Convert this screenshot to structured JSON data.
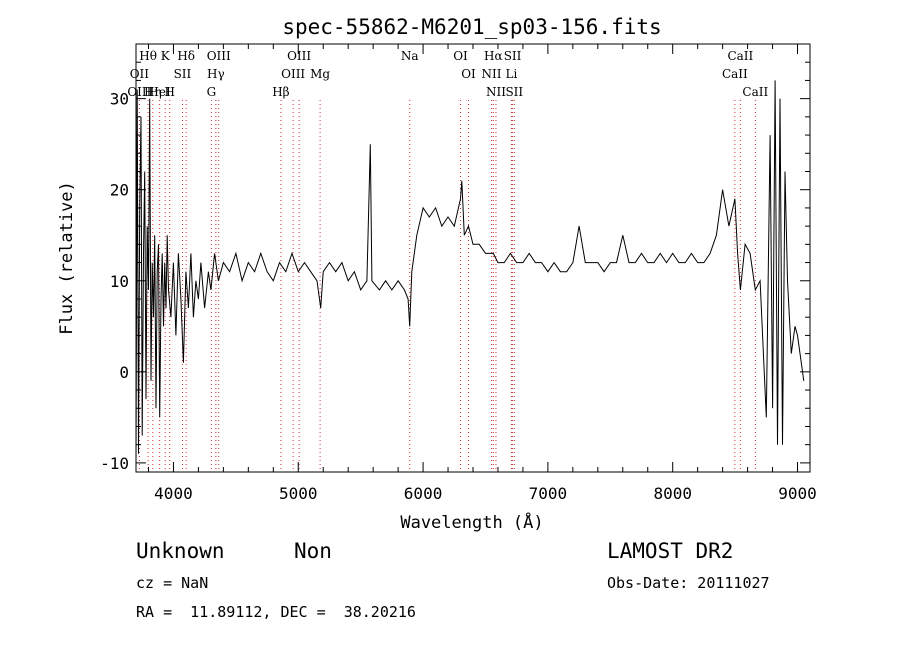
{
  "chart_data": {
    "type": "line",
    "title": "spec-55862-M6201_sp03-156.fits",
    "xlabel": "Wavelength (Å)",
    "ylabel": "Flux (relative)",
    "xlim": [
      3700,
      9100
    ],
    "ylim": [
      -11,
      36
    ],
    "xticks": [
      4000,
      5000,
      6000,
      7000,
      8000,
      9000
    ],
    "yticks": [
      -10,
      0,
      10,
      20,
      30
    ],
    "grid": false,
    "series": [
      {
        "points": [
          [
            3700,
            -10
          ],
          [
            3710,
            31
          ],
          [
            3720,
            -9
          ],
          [
            3730,
            18
          ],
          [
            3740,
            28
          ],
          [
            3750,
            -7
          ],
          [
            3760,
            13
          ],
          [
            3770,
            22
          ],
          [
            3780,
            -3
          ],
          [
            3790,
            16
          ],
          [
            3800,
            9
          ],
          [
            3810,
            30
          ],
          [
            3820,
            -1
          ],
          [
            3830,
            12
          ],
          [
            3840,
            6
          ],
          [
            3850,
            15
          ],
          [
            3860,
            -4
          ],
          [
            3870,
            11
          ],
          [
            3880,
            14
          ],
          [
            3890,
            -5
          ],
          [
            3900,
            8
          ],
          [
            3910,
            13
          ],
          [
            3920,
            5
          ],
          [
            3930,
            12
          ],
          [
            3940,
            7
          ],
          [
            3950,
            15
          ],
          [
            3960,
            9
          ],
          [
            3980,
            6
          ],
          [
            4000,
            12
          ],
          [
            4020,
            4
          ],
          [
            4040,
            13
          ],
          [
            4060,
            8
          ],
          [
            4080,
            1
          ],
          [
            4100,
            11
          ],
          [
            4120,
            7
          ],
          [
            4140,
            13
          ],
          [
            4160,
            6
          ],
          [
            4180,
            10
          ],
          [
            4200,
            8
          ],
          [
            4220,
            12
          ],
          [
            4250,
            7
          ],
          [
            4280,
            11
          ],
          [
            4300,
            9
          ],
          [
            4330,
            13
          ],
          [
            4360,
            10
          ],
          [
            4400,
            12
          ],
          [
            4450,
            11
          ],
          [
            4500,
            13
          ],
          [
            4550,
            10
          ],
          [
            4600,
            12
          ],
          [
            4650,
            11
          ],
          [
            4700,
            13
          ],
          [
            4750,
            11
          ],
          [
            4800,
            10
          ],
          [
            4850,
            12
          ],
          [
            4900,
            11
          ],
          [
            4950,
            13
          ],
          [
            5000,
            11
          ],
          [
            5050,
            12
          ],
          [
            5100,
            11
          ],
          [
            5150,
            10
          ],
          [
            5180,
            7
          ],
          [
            5200,
            11
          ],
          [
            5250,
            12
          ],
          [
            5300,
            11
          ],
          [
            5350,
            12
          ],
          [
            5400,
            10
          ],
          [
            5450,
            11
          ],
          [
            5500,
            9
          ],
          [
            5550,
            10
          ],
          [
            5577,
            25
          ],
          [
            5590,
            10
          ],
          [
            5650,
            9
          ],
          [
            5700,
            10
          ],
          [
            5750,
            9
          ],
          [
            5800,
            10
          ],
          [
            5850,
            9
          ],
          [
            5880,
            8
          ],
          [
            5893,
            5
          ],
          [
            5910,
            11
          ],
          [
            5950,
            15
          ],
          [
            6000,
            18
          ],
          [
            6050,
            17
          ],
          [
            6100,
            18
          ],
          [
            6150,
            16
          ],
          [
            6200,
            17
          ],
          [
            6250,
            16
          ],
          [
            6300,
            19
          ],
          [
            6310,
            21
          ],
          [
            6330,
            15
          ],
          [
            6364,
            16
          ],
          [
            6400,
            14
          ],
          [
            6450,
            14
          ],
          [
            6500,
            13
          ],
          [
            6563,
            13
          ],
          [
            6600,
            12
          ],
          [
            6650,
            12
          ],
          [
            6700,
            13
          ],
          [
            6750,
            12
          ],
          [
            6800,
            12
          ],
          [
            6850,
            13
          ],
          [
            6900,
            12
          ],
          [
            6950,
            12
          ],
          [
            7000,
            11
          ],
          [
            7050,
            12
          ],
          [
            7100,
            11
          ],
          [
            7150,
            11
          ],
          [
            7200,
            12
          ],
          [
            7250,
            16
          ],
          [
            7300,
            12
          ],
          [
            7350,
            12
          ],
          [
            7400,
            12
          ],
          [
            7450,
            11
          ],
          [
            7500,
            12
          ],
          [
            7550,
            12
          ],
          [
            7600,
            15
          ],
          [
            7650,
            12
          ],
          [
            7700,
            12
          ],
          [
            7750,
            13
          ],
          [
            7800,
            12
          ],
          [
            7850,
            12
          ],
          [
            7900,
            13
          ],
          [
            7950,
            12
          ],
          [
            8000,
            13
          ],
          [
            8050,
            12
          ],
          [
            8100,
            12
          ],
          [
            8150,
            13
          ],
          [
            8200,
            12
          ],
          [
            8250,
            12
          ],
          [
            8300,
            13
          ],
          [
            8350,
            15
          ],
          [
            8400,
            20
          ],
          [
            8450,
            16
          ],
          [
            8498,
            19
          ],
          [
            8520,
            13
          ],
          [
            8542,
            9
          ],
          [
            8580,
            14
          ],
          [
            8620,
            13
          ],
          [
            8662,
            9
          ],
          [
            8700,
            10
          ],
          [
            8750,
            -5
          ],
          [
            8780,
            26
          ],
          [
            8800,
            -4
          ],
          [
            8820,
            32
          ],
          [
            8840,
            -8
          ],
          [
            8860,
            30
          ],
          [
            8880,
            -8
          ],
          [
            8900,
            22
          ],
          [
            8920,
            10
          ],
          [
            8950,
            2
          ],
          [
            8980,
            5
          ],
          [
            9000,
            4
          ],
          [
            9050,
            -1
          ]
        ]
      }
    ],
    "lines": [
      {
        "label": "Hθ",
        "x": 3797
      },
      {
        "label": "OII",
        "x": 3727
      },
      {
        "label": "OIII",
        "x": 3727
      },
      {
        "label": "K",
        "x": 3934
      },
      {
        "label": "HeI",
        "x": 3889
      },
      {
        "label": "Hη",
        "x": 3835
      },
      {
        "label": "Hδ",
        "x": 4102
      },
      {
        "label": "SII",
        "x": 4072
      },
      {
        "label": "H",
        "x": 3970
      },
      {
        "label": "OIII",
        "x": 4363
      },
      {
        "label": "Hγ",
        "x": 4340
      },
      {
        "label": "G",
        "x": 4304
      },
      {
        "label": "OIII",
        "x": 5007
      },
      {
        "label": "OIII",
        "x": 4959
      },
      {
        "label": "Hβ",
        "x": 4861
      },
      {
        "label": "Mg",
        "x": 5175
      },
      {
        "label": "Na",
        "x": 5893
      },
      {
        "label": "OI",
        "x": 6300
      },
      {
        "label": "OI",
        "x": 6364
      },
      {
        "label": "Hα",
        "x": 6563
      },
      {
        "label": "SII",
        "x": 6717
      },
      {
        "label": "NII",
        "x": 6548
      },
      {
        "label": "Li",
        "x": 6708
      },
      {
        "label": "NII",
        "x": 6584
      },
      {
        "label": "SII",
        "x": 6731
      },
      {
        "label": "CaII",
        "x": 8542
      },
      {
        "label": "CaII",
        "x": 8498
      },
      {
        "label": "CaII",
        "x": 8662
      }
    ]
  },
  "info": {
    "class_text": "Unknown",
    "subclass_text": "Non",
    "survey_text": "LAMOST DR2",
    "cz_text": "cz = NaN",
    "obs_date_text": "Obs-Date: 20111027",
    "coords_text": "RA =  11.89112, DEC =  38.20216"
  }
}
